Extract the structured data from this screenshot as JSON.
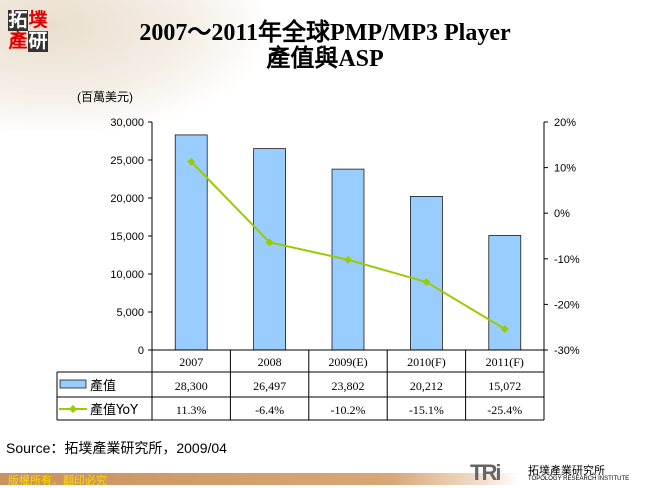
{
  "title_line1": "2007～2011年全球PMP/MP3 Player",
  "title_line2": "產值與ASP",
  "logo": "拓墣產研",
  "source": "Source：拓墣產業研究所，2009/04",
  "footer": "版權所有．翻印必究",
  "brand": {
    "mark": "TRi",
    "name": "拓墣產業研究所",
    "sub": "TOPOLOGY RESEARCH INSTITUTE"
  },
  "colors": {
    "bar": "#99ccff",
    "line": "#99cc00"
  },
  "chart_data": {
    "type": "bar+line",
    "categories": [
      "2007",
      "2008",
      "2009(E)",
      "2010(F)",
      "2011(F)"
    ],
    "ylabel": "(百萬美元)",
    "ylim": [
      0,
      30000
    ],
    "y2lim": [
      -30,
      20
    ],
    "yticks": [
      "0",
      "5,000",
      "10,000",
      "15,000",
      "20,000",
      "25,000",
      "30,000"
    ],
    "y2ticks": [
      "-30%",
      "-20%",
      "-10%",
      "0%",
      "10%",
      "20%"
    ],
    "series": [
      {
        "name": "產值",
        "type": "bar",
        "axis": "left",
        "values": [
          28300,
          26497,
          23802,
          20212,
          15072
        ],
        "labels": [
          "28,300",
          "26,497",
          "23,802",
          "20,212",
          "15,072"
        ]
      },
      {
        "name": "產值YoY",
        "type": "line",
        "axis": "right",
        "values": [
          11.3,
          -6.4,
          -10.2,
          -15.1,
          -25.4
        ],
        "labels": [
          "11.3%",
          "-6.4%",
          "-10.2%",
          "-15.1%",
          "-25.4%"
        ]
      }
    ],
    "data_table": true
  }
}
